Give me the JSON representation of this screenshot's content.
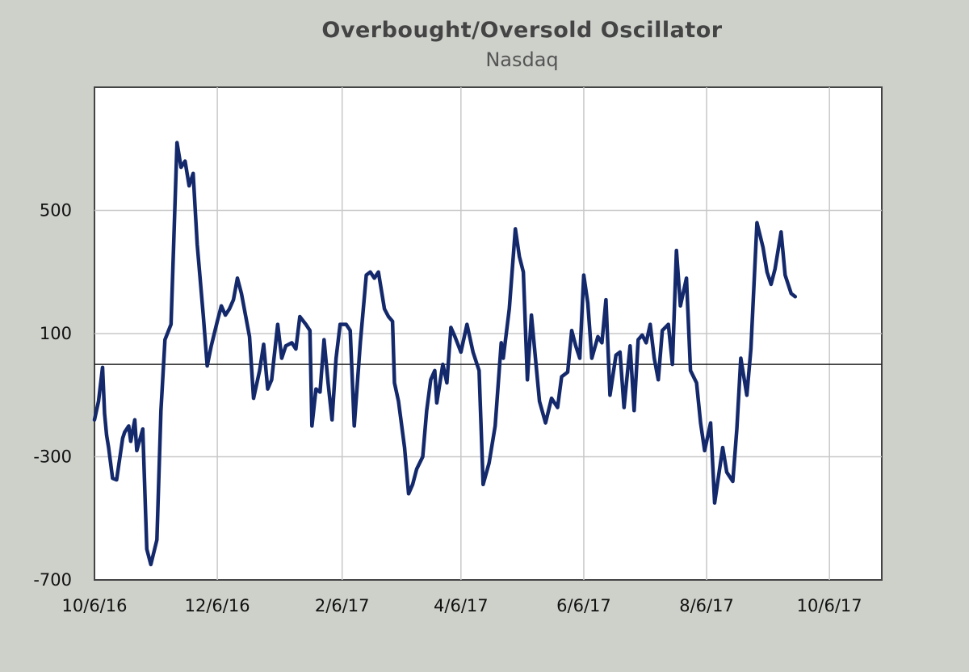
{
  "chart_data": {
    "type": "line",
    "title": "Overbought/Oversold  Oscillator",
    "subtitle": "Nasdaq",
    "xlabel": "",
    "ylabel": "",
    "ylim": [
      -700,
      900
    ],
    "y_ticks": [
      500,
      100,
      -300,
      -700
    ],
    "y_tick_labels": [
      "500",
      "100",
      "-300",
      "-700"
    ],
    "reference_line": 0,
    "grid": true,
    "x_ticks": [
      "2016-10-06",
      "2016-12-06",
      "2017-02-06",
      "2017-04-06",
      "2017-06-06",
      "2017-08-06",
      "2017-10-06"
    ],
    "x_tick_labels": [
      "10/6/16",
      "12/6/16",
      "2/6/17",
      "4/6/17",
      "6/6/17",
      "8/6/17",
      "10/6/17"
    ],
    "xlim": [
      "2016-10-06",
      "2017-11-01"
    ],
    "series": [
      {
        "name": "Nasdaq",
        "color": "#14296b",
        "points": [
          [
            "2016-10-06",
            -180
          ],
          [
            "2016-10-08",
            -120
          ],
          [
            "2016-10-10",
            -10
          ],
          [
            "2016-10-11",
            -160
          ],
          [
            "2016-10-12",
            -230
          ],
          [
            "2016-10-13",
            -270
          ],
          [
            "2016-10-15",
            -370
          ],
          [
            "2016-10-17",
            -375
          ],
          [
            "2016-10-18",
            -330
          ],
          [
            "2016-10-20",
            -240
          ],
          [
            "2016-10-21",
            -220
          ],
          [
            "2016-10-23",
            -200
          ],
          [
            "2016-10-24",
            -250
          ],
          [
            "2016-10-26",
            -180
          ],
          [
            "2016-10-27",
            -280
          ],
          [
            "2016-10-30",
            -210
          ],
          [
            "2016-11-01",
            -600
          ],
          [
            "2016-11-03",
            -650
          ],
          [
            "2016-11-06",
            -570
          ],
          [
            "2016-11-08",
            -150
          ],
          [
            "2016-11-10",
            80
          ],
          [
            "2016-11-13",
            130
          ],
          [
            "2016-11-15",
            520
          ],
          [
            "2016-11-16",
            720
          ],
          [
            "2016-11-18",
            640
          ],
          [
            "2016-11-20",
            660
          ],
          [
            "2016-11-22",
            580
          ],
          [
            "2016-11-24",
            620
          ],
          [
            "2016-11-26",
            390
          ],
          [
            "2016-11-29",
            160
          ],
          [
            "2016-12-01",
            -5
          ],
          [
            "2016-12-03",
            60
          ],
          [
            "2016-12-06",
            140
          ],
          [
            "2016-12-08",
            190
          ],
          [
            "2016-12-10",
            160
          ],
          [
            "2016-12-12",
            180
          ],
          [
            "2016-12-14",
            210
          ],
          [
            "2016-12-16",
            280
          ],
          [
            "2016-12-18",
            230
          ],
          [
            "2016-12-20",
            160
          ],
          [
            "2016-12-22",
            90
          ],
          [
            "2016-12-24",
            -110
          ],
          [
            "2016-12-27",
            -20
          ],
          [
            "2016-12-29",
            65
          ],
          [
            "2016-12-31",
            -80
          ],
          [
            "2017-01-02",
            -50
          ],
          [
            "2017-01-05",
            130
          ],
          [
            "2017-01-07",
            20
          ],
          [
            "2017-01-09",
            60
          ],
          [
            "2017-01-12",
            70
          ],
          [
            "2017-01-14",
            50
          ],
          [
            "2017-01-16",
            155
          ],
          [
            "2017-01-19",
            130
          ],
          [
            "2017-01-21",
            110
          ],
          [
            "2017-01-22",
            -200
          ],
          [
            "2017-01-24",
            -80
          ],
          [
            "2017-01-26",
            -90
          ],
          [
            "2017-01-28",
            80
          ],
          [
            "2017-01-30",
            -60
          ],
          [
            "2017-02-01",
            -180
          ],
          [
            "2017-02-03",
            20
          ],
          [
            "2017-02-05",
            130
          ],
          [
            "2017-02-08",
            130
          ],
          [
            "2017-02-10",
            110
          ],
          [
            "2017-02-12",
            -200
          ],
          [
            "2017-02-15",
            70
          ],
          [
            "2017-02-18",
            290
          ],
          [
            "2017-02-20",
            300
          ],
          [
            "2017-02-22",
            280
          ],
          [
            "2017-02-24",
            300
          ],
          [
            "2017-02-27",
            180
          ],
          [
            "2017-03-01",
            155
          ],
          [
            "2017-03-03",
            140
          ],
          [
            "2017-03-04",
            -60
          ],
          [
            "2017-03-06",
            -120
          ],
          [
            "2017-03-09",
            -270
          ],
          [
            "2017-03-11",
            -420
          ],
          [
            "2017-03-13",
            -390
          ],
          [
            "2017-03-15",
            -340
          ],
          [
            "2017-03-18",
            -300
          ],
          [
            "2017-03-20",
            -150
          ],
          [
            "2017-03-22",
            -50
          ],
          [
            "2017-03-24",
            -20
          ],
          [
            "2017-03-25",
            -125
          ],
          [
            "2017-03-28",
            0
          ],
          [
            "2017-03-30",
            -60
          ],
          [
            "2017-04-01",
            120
          ],
          [
            "2017-04-03",
            90
          ],
          [
            "2017-04-06",
            40
          ],
          [
            "2017-04-09",
            130
          ],
          [
            "2017-04-12",
            40
          ],
          [
            "2017-04-15",
            -20
          ],
          [
            "2017-04-17",
            -390
          ],
          [
            "2017-04-20",
            -320
          ],
          [
            "2017-04-23",
            -200
          ],
          [
            "2017-04-26",
            70
          ],
          [
            "2017-04-27",
            20
          ],
          [
            "2017-04-30",
            180
          ],
          [
            "2017-05-03",
            440
          ],
          [
            "2017-05-05",
            350
          ],
          [
            "2017-05-07",
            300
          ],
          [
            "2017-05-09",
            -50
          ],
          [
            "2017-05-11",
            160
          ],
          [
            "2017-05-13",
            20
          ],
          [
            "2017-05-15",
            -120
          ],
          [
            "2017-05-18",
            -190
          ],
          [
            "2017-05-21",
            -110
          ],
          [
            "2017-05-24",
            -140
          ],
          [
            "2017-05-26",
            -40
          ],
          [
            "2017-05-29",
            -25
          ],
          [
            "2017-05-31",
            110
          ],
          [
            "2017-06-02",
            60
          ],
          [
            "2017-06-04",
            20
          ],
          [
            "2017-06-06",
            290
          ],
          [
            "2017-06-08",
            200
          ],
          [
            "2017-06-10",
            20
          ],
          [
            "2017-06-13",
            90
          ],
          [
            "2017-06-15",
            70
          ],
          [
            "2017-06-17",
            210
          ],
          [
            "2017-06-19",
            -100
          ],
          [
            "2017-06-22",
            30
          ],
          [
            "2017-06-24",
            40
          ],
          [
            "2017-06-26",
            -140
          ],
          [
            "2017-06-29",
            60
          ],
          [
            "2017-07-01",
            -150
          ],
          [
            "2017-07-03",
            80
          ],
          [
            "2017-07-05",
            95
          ],
          [
            "2017-07-07",
            70
          ],
          [
            "2017-07-09",
            130
          ],
          [
            "2017-07-11",
            20
          ],
          [
            "2017-07-13",
            -50
          ],
          [
            "2017-07-15",
            110
          ],
          [
            "2017-07-18",
            130
          ],
          [
            "2017-07-20",
            0
          ],
          [
            "2017-07-22",
            370
          ],
          [
            "2017-07-24",
            190
          ],
          [
            "2017-07-27",
            280
          ],
          [
            "2017-07-29",
            -20
          ],
          [
            "2017-08-01",
            -60
          ],
          [
            "2017-08-03",
            -190
          ],
          [
            "2017-08-05",
            -280
          ],
          [
            "2017-08-08",
            -190
          ],
          [
            "2017-08-10",
            -450
          ],
          [
            "2017-08-12",
            -360
          ],
          [
            "2017-08-14",
            -270
          ],
          [
            "2017-08-16",
            -350
          ],
          [
            "2017-08-19",
            -380
          ],
          [
            "2017-08-21",
            -210
          ],
          [
            "2017-08-23",
            20
          ],
          [
            "2017-08-26",
            -100
          ],
          [
            "2017-08-28",
            50
          ],
          [
            "2017-08-31",
            460
          ],
          [
            "2017-09-03",
            380
          ],
          [
            "2017-09-05",
            300
          ],
          [
            "2017-09-07",
            260
          ],
          [
            "2017-09-09",
            310
          ],
          [
            "2017-09-12",
            430
          ],
          [
            "2017-09-14",
            290
          ],
          [
            "2017-09-17",
            230
          ],
          [
            "2017-09-19",
            220
          ]
        ]
      }
    ]
  }
}
